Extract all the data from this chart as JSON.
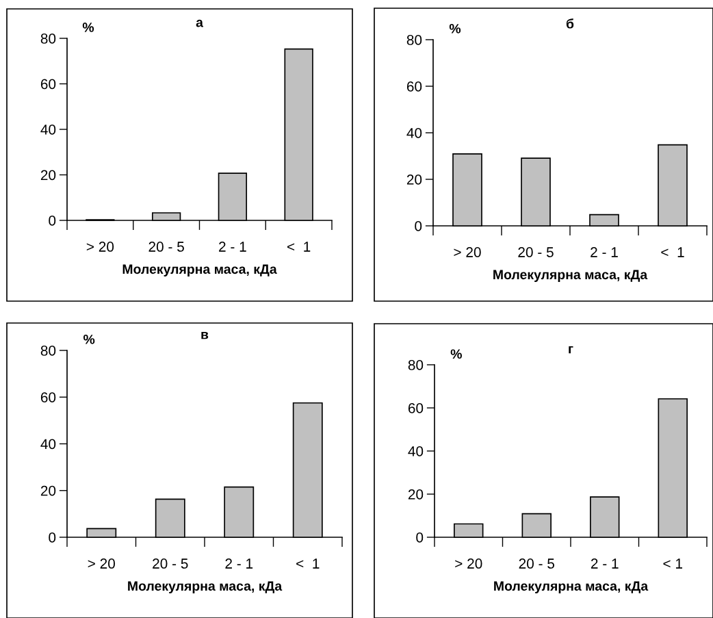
{
  "chart_data": [
    {
      "type": "bar",
      "title": "а",
      "ylabel": "%",
      "xlabel": "Молекулярна маса, кДа",
      "categories": [
        "> 20",
        "20 - 5",
        "2 - 1",
        "<  1"
      ],
      "values": [
        0.3,
        3.3,
        20.7,
        75.3
      ],
      "color": "#c0c0c0",
      "ylim": [
        0,
        80
      ],
      "yticks": [
        0,
        20,
        40,
        60,
        80
      ],
      "grid": false,
      "legend": false
    },
    {
      "type": "bar",
      "title": "б",
      "ylabel": "%",
      "xlabel": "Молекулярна маса, кДа",
      "categories": [
        "> 20",
        "20 - 5",
        "2 - 1",
        "<  1"
      ],
      "values": [
        30.9,
        29.1,
        4.8,
        34.8
      ],
      "color": "#c0c0c0",
      "ylim": [
        0,
        80
      ],
      "yticks": [
        0,
        20,
        40,
        60,
        80
      ],
      "grid": false,
      "legend": false
    },
    {
      "type": "bar",
      "title": "в",
      "ylabel": "%",
      "xlabel": "Молекулярна маса, кДа",
      "categories": [
        "> 20",
        "20 - 5",
        "2 - 1",
        "<  1"
      ],
      "values": [
        3.7,
        16.3,
        21.5,
        57.5
      ],
      "color": "#c0c0c0",
      "ylim": [
        0,
        80
      ],
      "yticks": [
        0,
        20,
        40,
        60,
        80
      ],
      "grid": false,
      "legend": false
    },
    {
      "type": "bar",
      "title": "г",
      "ylabel": "%",
      "xlabel": "Молекулярна маса, кДа",
      "categories": [
        "> 20",
        "20 - 5",
        "2 - 1",
        "< 1"
      ],
      "values": [
        6.2,
        10.9,
        18.7,
        64.2
      ],
      "color": "#c0c0c0",
      "ylim": [
        0,
        80
      ],
      "yticks": [
        0,
        20,
        40,
        60,
        80
      ],
      "grid": false,
      "legend": false
    }
  ]
}
